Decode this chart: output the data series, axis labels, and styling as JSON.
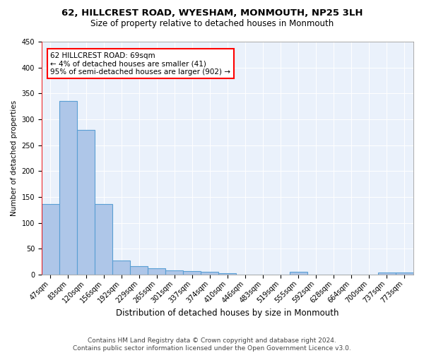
{
  "title": "62, HILLCREST ROAD, WYESHAM, MONMOUTH, NP25 3LH",
  "subtitle": "Size of property relative to detached houses in Monmouth",
  "xlabel": "Distribution of detached houses by size in Monmouth",
  "ylabel": "Number of detached properties",
  "footer_line1": "Contains HM Land Registry data © Crown copyright and database right 2024.",
  "footer_line2": "Contains public sector information licensed under the Open Government Licence v3.0.",
  "bar_labels": [
    "47sqm",
    "83sqm",
    "120sqm",
    "156sqm",
    "192sqm",
    "229sqm",
    "265sqm",
    "301sqm",
    "337sqm",
    "374sqm",
    "410sqm",
    "446sqm",
    "483sqm",
    "519sqm",
    "555sqm",
    "592sqm",
    "628sqm",
    "664sqm",
    "700sqm",
    "737sqm",
    "773sqm"
  ],
  "bar_values": [
    136,
    335,
    280,
    136,
    27,
    16,
    12,
    8,
    7,
    5,
    3,
    0,
    0,
    0,
    5,
    0,
    0,
    0,
    0,
    4,
    4
  ],
  "bar_color": "#aec6e8",
  "bar_edge_color": "#5a9fd4",
  "background_color": "#eaf1fb",
  "annotation_line1": "62 HILLCREST ROAD: 69sqm",
  "annotation_line2": "← 4% of detached houses are smaller (41)",
  "annotation_line3": "95% of semi-detached houses are larger (902) →",
  "ylim": [
    0,
    450
  ],
  "yticks": [
    0,
    50,
    100,
    150,
    200,
    250,
    300,
    350,
    400,
    450
  ],
  "title_fontsize": 9.5,
  "subtitle_fontsize": 8.5,
  "xlabel_fontsize": 8.5,
  "ylabel_fontsize": 7.5,
  "tick_fontsize": 7,
  "annotation_fontsize": 7.5,
  "footer_fontsize": 6.5
}
